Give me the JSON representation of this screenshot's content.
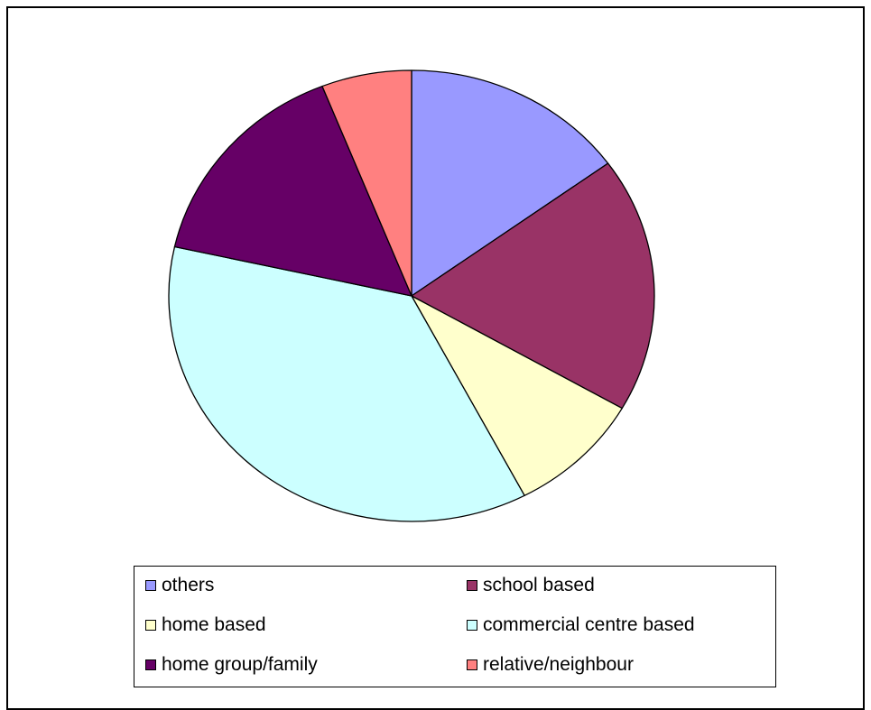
{
  "chart_data": {
    "type": "pie",
    "title": "",
    "start_angle_deg": 0,
    "direction": "clockwise",
    "legend_position": "bottom",
    "slices": [
      {
        "label": "others",
        "value": 15.0,
        "color": "#9999FF"
      },
      {
        "label": "school based",
        "value": 18.3,
        "color": "#993366"
      },
      {
        "label": "home based",
        "value": 9.0,
        "color": "#FFFFCC"
      },
      {
        "label": "commercial centre based",
        "value": 36.2,
        "color": "#CCFFFF"
      },
      {
        "label": "home group/family",
        "value": 15.5,
        "color": "#660066"
      },
      {
        "label": "relative/neighbour",
        "value": 6.0,
        "color": "#FF8080"
      }
    ]
  }
}
